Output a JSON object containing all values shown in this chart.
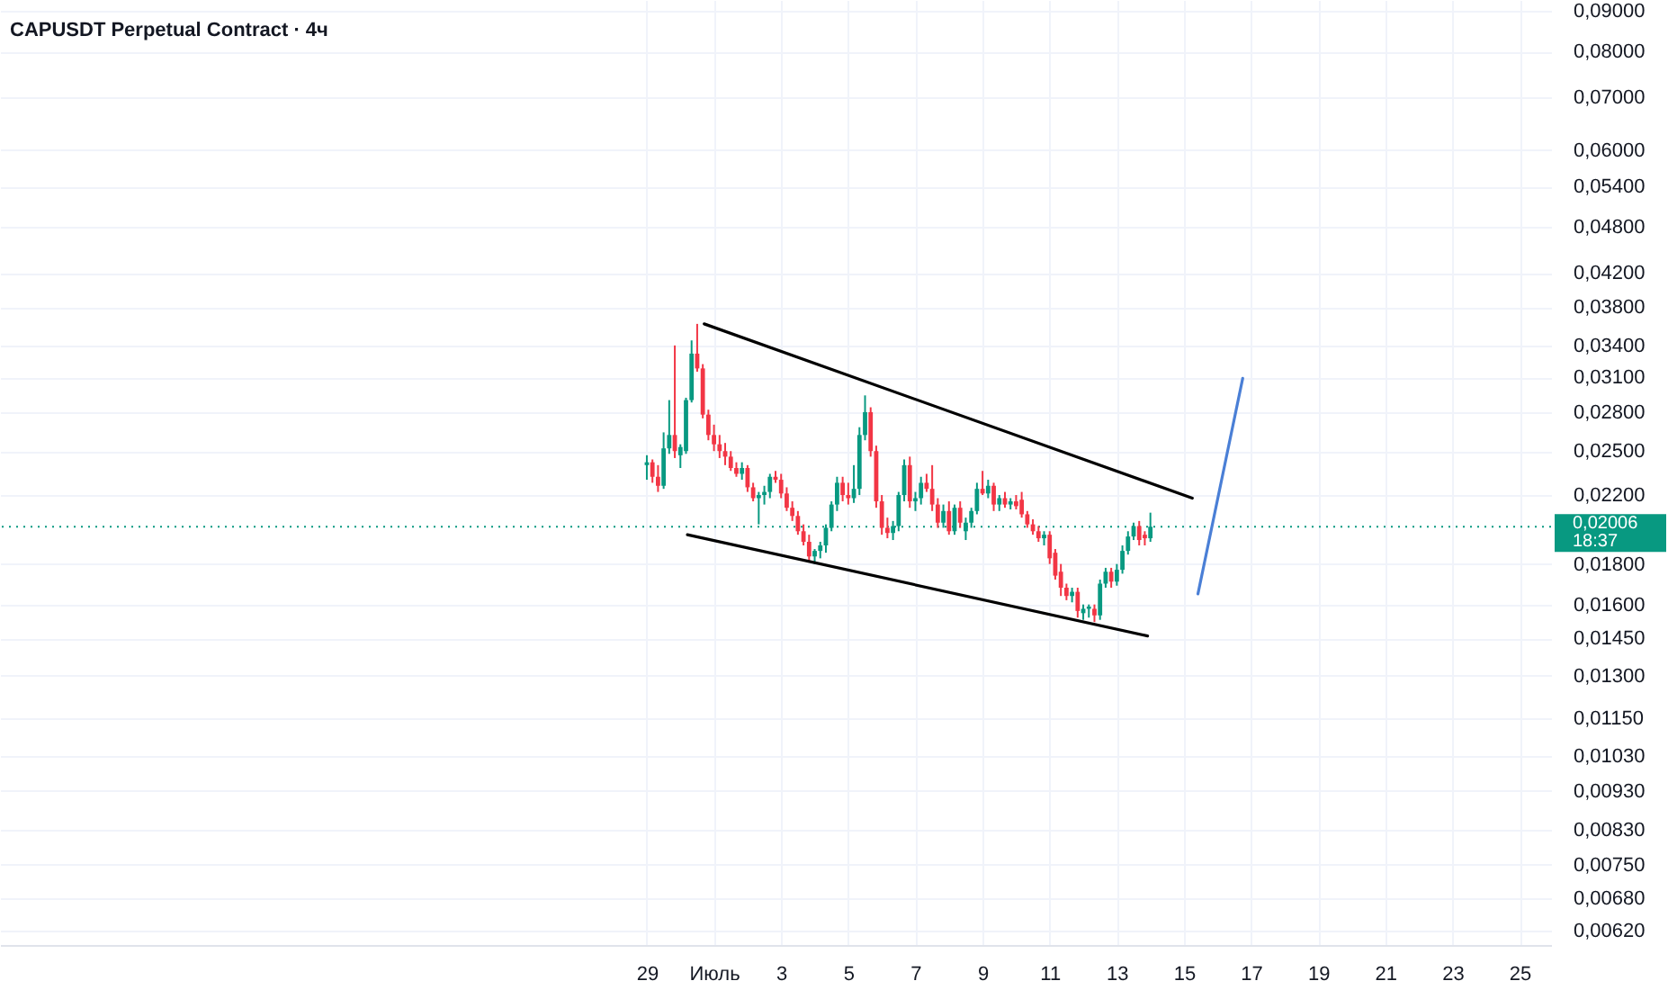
{
  "chart_data": {
    "type": "candlestick",
    "title": "CAPUSDT Perpetual Contract · 4ч",
    "log": "y",
    "grid": true,
    "x": [
      "--06-29T00:00",
      "--06-29T04:00",
      "--06-29T08:00",
      "--06-29T12:00",
      "--06-29T16:00",
      "--06-29T20:00",
      "--06-30T00:00",
      "--06-30T04:00",
      "--06-30T08:00",
      "--06-30T12:00",
      "--06-30T16:00",
      "--06-30T20:00",
      "--07-01T00:00",
      "--07-01T04:00",
      "--07-01T08:00",
      "--07-01T12:00",
      "--07-01T16:00",
      "--07-01T20:00",
      "--07-02T00:00",
      "--07-02T04:00",
      "--07-02T08:00",
      "--07-02T12:00",
      "--07-02T16:00",
      "--07-02T20:00",
      "--07-03T00:00",
      "--07-03T04:00",
      "--07-03T08:00",
      "--07-03T12:00",
      "--07-03T16:00",
      "--07-03T20:00",
      "--07-04T00:00",
      "--07-04T04:00",
      "--07-04T08:00",
      "--07-04T12:00",
      "--07-04T16:00",
      "--07-04T20:00",
      "--07-05T00:00",
      "--07-05T04:00",
      "--07-05T08:00",
      "--07-05T12:00",
      "--07-05T16:00",
      "--07-05T20:00",
      "--07-06T00:00",
      "--07-06T04:00",
      "--07-06T08:00",
      "--07-06T12:00",
      "--07-06T16:00",
      "--07-06T20:00",
      "--07-07T00:00",
      "--07-07T04:00",
      "--07-07T08:00",
      "--07-07T12:00",
      "--07-07T16:00",
      "--07-07T20:00",
      "--07-08T00:00",
      "--07-08T04:00",
      "--07-08T08:00",
      "--07-08T12:00",
      "--07-08T16:00",
      "--07-08T20:00",
      "--07-09T00:00",
      "--07-09T04:00",
      "--07-09T08:00",
      "--07-09T12:00",
      "--07-09T16:00",
      "--07-09T20:00",
      "--07-10T00:00",
      "--07-10T04:00",
      "--07-10T08:00",
      "--07-10T12:00",
      "--07-10T16:00",
      "--07-10T20:00",
      "--07-11T00:00",
      "--07-11T04:00",
      "--07-11T08:00",
      "--07-11T12:00",
      "--07-11T16:00",
      "--07-11T20:00",
      "--07-12T00:00",
      "--07-12T04:00",
      "--07-12T08:00",
      "--07-12T12:00",
      "--07-12T16:00",
      "--07-12T20:00",
      "--07-13T00:00",
      "--07-13T04:00",
      "--07-13T08:00",
      "--07-13T12:00",
      "--07-13T16:00",
      "--07-13T20:00",
      "--07-14T00:00"
    ],
    "ohlc": [
      [
        0.024,
        0.0247,
        0.023,
        0.0242
      ],
      [
        0.0242,
        0.0244,
        0.0228,
        0.0232
      ],
      [
        0.0232,
        0.024,
        0.0222,
        0.0226
      ],
      [
        0.0226,
        0.0264,
        0.0224,
        0.0252
      ],
      [
        0.0252,
        0.029,
        0.0248,
        0.0262
      ],
      [
        0.0262,
        0.034,
        0.0245,
        0.025
      ],
      [
        0.0247,
        0.0255,
        0.0238,
        0.0253
      ],
      [
        0.025,
        0.0292,
        0.0248,
        0.029
      ],
      [
        0.029,
        0.0345,
        0.0288,
        0.0332
      ],
      [
        0.0332,
        0.0362,
        0.0315,
        0.0318
      ],
      [
        0.0318,
        0.0322,
        0.0275,
        0.0278
      ],
      [
        0.0278,
        0.0282,
        0.0258,
        0.0262
      ],
      [
        0.0262,
        0.027,
        0.025,
        0.0255
      ],
      [
        0.0255,
        0.0262,
        0.0245,
        0.025
      ],
      [
        0.025,
        0.0256,
        0.024,
        0.0246
      ],
      [
        0.0246,
        0.025,
        0.0236,
        0.0238
      ],
      [
        0.0238,
        0.0242,
        0.0232,
        0.0234
      ],
      [
        0.0234,
        0.0242,
        0.023,
        0.0238
      ],
      [
        0.0238,
        0.024,
        0.0222,
        0.0225
      ],
      [
        0.0225,
        0.0228,
        0.0216,
        0.0218
      ],
      [
        0.0218,
        0.0222,
        0.0202,
        0.022
      ],
      [
        0.022,
        0.0226,
        0.0214,
        0.0222
      ],
      [
        0.0222,
        0.0234,
        0.0218,
        0.0232
      ],
      [
        0.0232,
        0.0236,
        0.0228,
        0.023
      ],
      [
        0.023,
        0.0234,
        0.0218,
        0.0221
      ],
      [
        0.0221,
        0.0225,
        0.021,
        0.0212
      ],
      [
        0.0212,
        0.0216,
        0.0204,
        0.0207
      ],
      [
        0.0207,
        0.021,
        0.0196,
        0.0198
      ],
      [
        0.0198,
        0.0202,
        0.019,
        0.0192
      ],
      [
        0.0192,
        0.0196,
        0.0181,
        0.0184
      ],
      [
        0.0184,
        0.0188,
        0.018,
        0.0187
      ],
      [
        0.0187,
        0.0192,
        0.0183,
        0.019
      ],
      [
        0.019,
        0.0202,
        0.0186,
        0.02
      ],
      [
        0.02,
        0.0216,
        0.0198,
        0.0214
      ],
      [
        0.0214,
        0.0232,
        0.021,
        0.0228
      ],
      [
        0.0228,
        0.0232,
        0.0216,
        0.022
      ],
      [
        0.022,
        0.0228,
        0.0214,
        0.0218
      ],
      [
        0.0218,
        0.024,
        0.0215,
        0.0224
      ],
      [
        0.0224,
        0.0268,
        0.022,
        0.0262
      ],
      [
        0.0262,
        0.0294,
        0.0258,
        0.028
      ],
      [
        0.028,
        0.0284,
        0.0246,
        0.025
      ],
      [
        0.025,
        0.0254,
        0.0212,
        0.0216
      ],
      [
        0.0216,
        0.022,
        0.0196,
        0.02
      ],
      [
        0.02,
        0.0206,
        0.0194,
        0.0197
      ],
      [
        0.0197,
        0.0204,
        0.0193,
        0.0201
      ],
      [
        0.0201,
        0.0222,
        0.0198,
        0.022
      ],
      [
        0.022,
        0.0244,
        0.0216,
        0.024
      ],
      [
        0.024,
        0.0246,
        0.0212,
        0.0216
      ],
      [
        0.0216,
        0.0222,
        0.021,
        0.0218
      ],
      [
        0.0218,
        0.0232,
        0.0214,
        0.0228
      ],
      [
        0.0228,
        0.0234,
        0.0222,
        0.0224
      ],
      [
        0.0224,
        0.024,
        0.021,
        0.0214
      ],
      [
        0.0214,
        0.0218,
        0.02,
        0.0203
      ],
      [
        0.0203,
        0.0214,
        0.02,
        0.021
      ],
      [
        0.021,
        0.0216,
        0.0196,
        0.0198
      ],
      [
        0.0198,
        0.0214,
        0.0196,
        0.0212
      ],
      [
        0.0212,
        0.0216,
        0.02,
        0.0203
      ],
      [
        0.0198,
        0.0206,
        0.0193,
        0.0203
      ],
      [
        0.0203,
        0.0212,
        0.02,
        0.021
      ],
      [
        0.021,
        0.0228,
        0.0208,
        0.0224
      ],
      [
        0.0224,
        0.0236,
        0.022,
        0.0221
      ],
      [
        0.0221,
        0.023,
        0.0218,
        0.0226
      ],
      [
        0.0226,
        0.0228,
        0.021,
        0.0214
      ],
      [
        0.0214,
        0.022,
        0.021,
        0.0218
      ],
      [
        0.0218,
        0.0222,
        0.0212,
        0.0214
      ],
      [
        0.0214,
        0.0218,
        0.0211,
        0.0216
      ],
      [
        0.0216,
        0.022,
        0.0211,
        0.0213
      ],
      [
        0.0217,
        0.0222,
        0.0206,
        0.0208
      ],
      [
        0.0208,
        0.021,
        0.02,
        0.0202
      ],
      [
        0.0202,
        0.0205,
        0.0196,
        0.0198
      ],
      [
        0.0198,
        0.0201,
        0.0192,
        0.0194
      ],
      [
        0.0194,
        0.0198,
        0.019,
        0.0196
      ],
      [
        0.0196,
        0.0198,
        0.018,
        0.0183
      ],
      [
        0.0186,
        0.0188,
        0.0172,
        0.0174
      ],
      [
        0.0176,
        0.018,
        0.0164,
        0.0168
      ],
      [
        0.0168,
        0.017,
        0.0162,
        0.0164
      ],
      [
        0.0164,
        0.0168,
        0.0161,
        0.0166
      ],
      [
        0.0166,
        0.0168,
        0.0154,
        0.0157
      ],
      [
        0.0156,
        0.016,
        0.0153,
        0.0158
      ],
      [
        0.0158,
        0.016,
        0.0154,
        0.0159
      ],
      [
        0.0158,
        0.016,
        0.0152,
        0.0155
      ],
      [
        0.0155,
        0.0172,
        0.0153,
        0.017
      ],
      [
        0.017,
        0.0178,
        0.0168,
        0.0176
      ],
      [
        0.0176,
        0.0178,
        0.0168,
        0.0171
      ],
      [
        0.0171,
        0.018,
        0.0169,
        0.0177
      ],
      [
        0.0177,
        0.019,
        0.0175,
        0.0187
      ],
      [
        0.0187,
        0.0198,
        0.0185,
        0.0195
      ],
      [
        0.0195,
        0.0203,
        0.0193,
        0.0201
      ],
      [
        0.0201,
        0.0204,
        0.019,
        0.0193
      ],
      [
        0.0196,
        0.0198,
        0.019,
        0.0194
      ],
      [
        0.0194,
        0.0209,
        0.0192,
        0.02006
      ]
    ],
    "colors": [
      "#089981",
      "#f23645",
      "#f23645",
      "#089981",
      "#089981",
      "#f23645",
      "#089981",
      "#089981",
      "#089981",
      "#f23645",
      "#f23645",
      "#f23645",
      "#f23645",
      "#f23645",
      "#f23645",
      "#f23645",
      "#f23645",
      "#089981",
      "#f23645",
      "#f23645",
      "#089981",
      "#089981",
      "#089981",
      "#f23645",
      "#f23645",
      "#f23645",
      "#f23645",
      "#f23645",
      "#f23645",
      "#f23645",
      "#089981",
      "#089981",
      "#089981",
      "#089981",
      "#089981",
      "#f23645",
      "#f23645",
      "#089981",
      "#089981",
      "#089981",
      "#f23645",
      "#f23645",
      "#f23645",
      "#f23645",
      "#089981",
      "#089981",
      "#089981",
      "#f23645",
      "#089981",
      "#089981",
      "#f23645",
      "#f23645",
      "#f23645",
      "#089981",
      "#f23645",
      "#089981",
      "#f23645",
      "#089981",
      "#089981",
      "#089981",
      "#f23645",
      "#089981",
      "#f23645",
      "#089981",
      "#f23645",
      "#089981",
      "#f23645",
      "#f23645",
      "#f23645",
      "#f23645",
      "#f23645",
      "#089981",
      "#f23645",
      "#f23645",
      "#f23645",
      "#f23645",
      "#089981",
      "#f23645",
      "#089981",
      "#089981",
      "#f23645",
      "#089981",
      "#089981",
      "#f23645",
      "#089981",
      "#089981",
      "#089981",
      "#089981",
      "#f23645",
      "#f23645",
      "#089981"
    ],
    "series": [
      {
        "type": "line",
        "color": "#000000",
        "x": [
          "--06-30T17:00",
          "--07-15T06:00"
        ],
        "values": [
          0.0362,
          0.0218
        ]
      },
      {
        "type": "line",
        "color": "#000000",
        "x": [
          "--06-30T05:00",
          "--07-13T22:00"
        ],
        "values": [
          0.0196,
          0.0146
        ]
      },
      {
        "type": "line",
        "color": "#4a7fd6",
        "x": [
          "--07-15T10:00",
          "--07-16T18:00"
        ],
        "values": [
          0.0165,
          0.0309
        ]
      }
    ],
    "ref_lines": [
      {
        "axis": "y",
        "value": 0.02006,
        "label": "0,02006",
        "color": "#089981",
        "line_style": "dotted"
      }
    ],
    "annotations": [
      "18:37"
    ],
    "xlim": [
      "--06-10",
      "--07-25T16:00"
    ],
    "xticks": [
      {
        "value": "--06-29",
        "label": "29"
      },
      {
        "value": "--07-01",
        "label": "Июль"
      },
      {
        "value": "--07-03",
        "label": "3"
      },
      {
        "value": "--07-05",
        "label": "5"
      },
      {
        "value": "--07-07",
        "label": "7"
      },
      {
        "value": "--07-09",
        "label": "9"
      },
      {
        "value": "--07-11",
        "label": "11"
      },
      {
        "value": "--07-13",
        "label": "13"
      },
      {
        "value": "--07-15",
        "label": "15"
      },
      {
        "value": "--07-17",
        "label": "17"
      },
      {
        "value": "--07-19",
        "label": "19"
      },
      {
        "value": "--07-21",
        "label": "21"
      },
      {
        "value": "--07-23",
        "label": "23"
      },
      {
        "value": "--07-25",
        "label": "25"
      }
    ],
    "ylim": [
      0.00594,
      0.0929
    ],
    "yticks": [
      {
        "value": 0.09,
        "label": "0,09000"
      },
      {
        "value": 0.08,
        "label": "0,08000"
      },
      {
        "value": 0.07,
        "label": "0,07000"
      },
      {
        "value": 0.06,
        "label": "0,06000"
      },
      {
        "value": 0.054,
        "label": "0,05400"
      },
      {
        "value": 0.048,
        "label": "0,04800"
      },
      {
        "value": 0.042,
        "label": "0,04200"
      },
      {
        "value": 0.038,
        "label": "0,03800"
      },
      {
        "value": 0.034,
        "label": "0,03400"
      },
      {
        "value": 0.031,
        "label": "0,03100"
      },
      {
        "value": 0.028,
        "label": "0,02800"
      },
      {
        "value": 0.025,
        "label": "0,02500"
      },
      {
        "value": 0.022,
        "label": "0,02200"
      },
      {
        "value": 0.018,
        "label": "0,01800"
      },
      {
        "value": 0.016,
        "label": "0,01600"
      },
      {
        "value": 0.0145,
        "label": "0,01450"
      },
      {
        "value": 0.013,
        "label": "0,01300"
      },
      {
        "value": 0.0115,
        "label": "0,01150"
      },
      {
        "value": 0.0103,
        "label": "0,01030"
      },
      {
        "value": 0.0093,
        "label": "0,00930"
      },
      {
        "value": 0.0083,
        "label": "0,00830"
      },
      {
        "value": 0.0075,
        "label": "0,00750"
      },
      {
        "value": 0.0068,
        "label": "0,00680"
      },
      {
        "value": 0.0062,
        "label": "0,00620"
      }
    ]
  }
}
